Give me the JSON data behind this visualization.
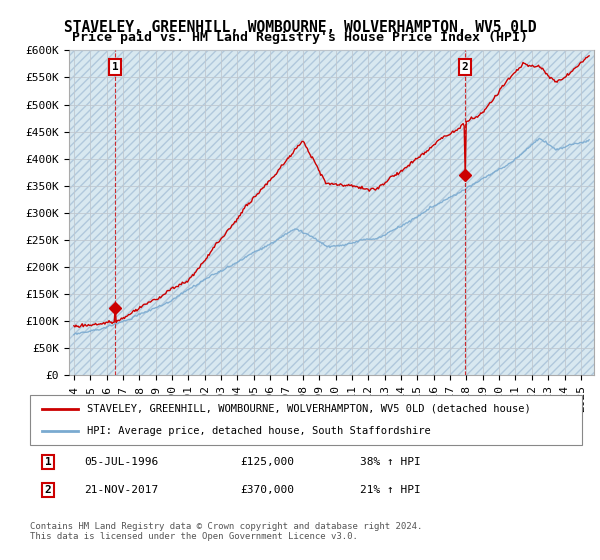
{
  "title": "STAVELEY, GREENHILL, WOMBOURNE, WOLVERHAMPTON, WV5 0LD",
  "subtitle": "Price paid vs. HM Land Registry's House Price Index (HPI)",
  "ylim": [
    0,
    600000
  ],
  "yticks": [
    0,
    50000,
    100000,
    150000,
    200000,
    250000,
    300000,
    350000,
    400000,
    450000,
    500000,
    550000,
    600000
  ],
  "ytick_labels": [
    "£0",
    "£50K",
    "£100K",
    "£150K",
    "£200K",
    "£250K",
    "£300K",
    "£350K",
    "£400K",
    "£450K",
    "£500K",
    "£550K",
    "£600K"
  ],
  "xlim_start": 1993.7,
  "xlim_end": 2025.8,
  "xtick_years": [
    1994,
    1995,
    1996,
    1997,
    1998,
    1999,
    2000,
    2001,
    2002,
    2003,
    2004,
    2005,
    2006,
    2007,
    2008,
    2009,
    2010,
    2011,
    2012,
    2013,
    2014,
    2015,
    2016,
    2017,
    2018,
    2019,
    2020,
    2021,
    2022,
    2023,
    2024,
    2025
  ],
  "sale1_x": 1996.51,
  "sale1_y": 125000,
  "sale2_x": 2017.9,
  "sale2_y": 370000,
  "sale1_date": "05-JUL-1996",
  "sale1_price": "£125,000",
  "sale1_hpi": "38% ↑ HPI",
  "sale2_date": "21-NOV-2017",
  "sale2_price": "£370,000",
  "sale2_hpi": "21% ↑ HPI",
  "red_color": "#cc0000",
  "blue_color": "#7aaad0",
  "hatch_color": "#d8e8f0",
  "grid_color": "#c0c8d0",
  "legend_line1": "STAVELEY, GREENHILL, WOMBOURNE, WOLVERHAMPTON, WV5 0LD (detached house)",
  "legend_line2": "HPI: Average price, detached house, South Staffordshire",
  "footer": "Contains HM Land Registry data © Crown copyright and database right 2024.\nThis data is licensed under the Open Government Licence v3.0.",
  "title_fontsize": 10.5,
  "tick_fontsize": 8,
  "background_color": "#ffffff"
}
